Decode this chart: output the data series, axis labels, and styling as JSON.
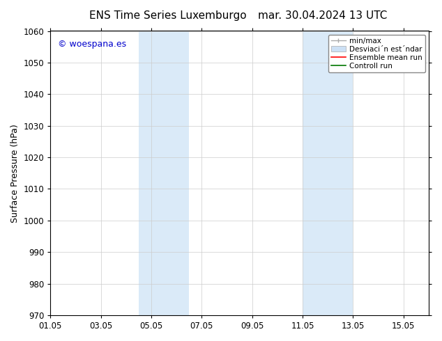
{
  "title_left": "ENS Time Series Luxemburgo",
  "title_right": "mar. 30.04.2024 13 UTC",
  "ylabel": "Surface Pressure (hPa)",
  "ylim": [
    970,
    1060
  ],
  "yticks": [
    970,
    980,
    990,
    1000,
    1010,
    1020,
    1030,
    1040,
    1050,
    1060
  ],
  "xtick_labels": [
    "01.05",
    "03.05",
    "05.05",
    "07.05",
    "09.05",
    "11.05",
    "13.05",
    "15.05"
  ],
  "xtick_positions": [
    0,
    2,
    4,
    6,
    8,
    10,
    12,
    14
  ],
  "xlim": [
    0,
    15
  ],
  "highlight_bands": [
    {
      "x_start": 3.5,
      "x_end": 5.5,
      "color": "#daeaf8"
    },
    {
      "x_start": 10.0,
      "x_end": 12.0,
      "color": "#daeaf8"
    }
  ],
  "background_color": "#ffffff",
  "grid_color": "#cccccc",
  "watermark_text": "© woespana.es",
  "watermark_color": "#0000cc",
  "legend_label_minmax": "min/max",
  "legend_label_std": "Desviaci´´n est´´ndar",
  "legend_label_ens": "Ensemble mean run",
  "legend_label_ctrl": "Controll run",
  "legend_color_minmax": "#aaaaaa",
  "legend_color_std": "#cce0f5",
  "legend_color_ens": "#ff0000",
  "legend_color_ctrl": "#007700",
  "title_fontsize": 11,
  "axis_label_fontsize": 9,
  "tick_fontsize": 8.5,
  "watermark_fontsize": 9,
  "legend_fontsize": 7.5
}
